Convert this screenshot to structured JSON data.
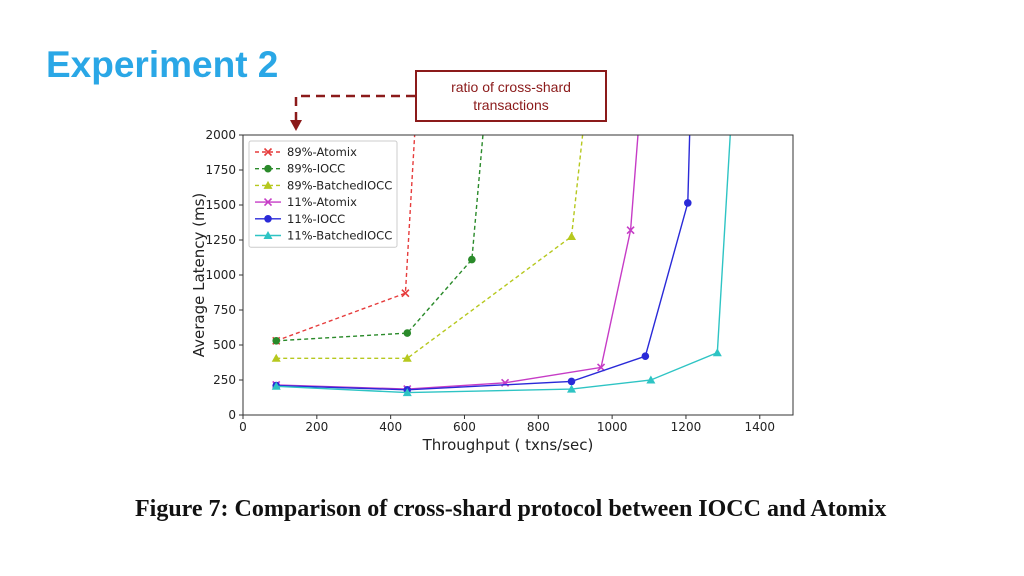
{
  "slide": {
    "title": "Experiment 2",
    "callout": "ratio of cross-shard transactions",
    "caption": "Figure 7: Comparison of cross-shard protocol between IOCC and Atomix"
  },
  "colors": {
    "title": "#2aa7e6",
    "callout": "#8b1a1a"
  },
  "chart_data": {
    "type": "line",
    "xlabel": "Throughput ( txns/sec)",
    "ylabel": "Average Latency (ms)",
    "xlim": [
      0,
      1490
    ],
    "ylim": [
      0,
      2000
    ],
    "xticks": [
      0,
      200,
      400,
      600,
      800,
      1000,
      1200,
      1400
    ],
    "yticks": [
      0,
      250,
      500,
      750,
      1000,
      1250,
      1500,
      1750,
      2000
    ],
    "legend_position": "top-left",
    "grid": false,
    "series": [
      {
        "name": "89%-Atomix",
        "color": "#e63c3c",
        "dash": true,
        "marker": "x",
        "x": [
          90,
          440,
          465
        ],
        "y": [
          530,
          870,
          2000
        ]
      },
      {
        "name": "89%-IOCC",
        "color": "#2a8a2a",
        "dash": true,
        "marker": "circle",
        "x": [
          90,
          445,
          620,
          650
        ],
        "y": [
          530,
          585,
          1110,
          2000
        ]
      },
      {
        "name": "89%-BatchedIOCC",
        "color": "#b6c81e",
        "dash": true,
        "marker": "triangle",
        "x": [
          90,
          445,
          890,
          920
        ],
        "y": [
          405,
          405,
          1275,
          2000
        ]
      },
      {
        "name": "11%-Atomix",
        "color": "#c63cc6",
        "dash": false,
        "marker": "x",
        "x": [
          90,
          445,
          710,
          970,
          1050,
          1070
        ],
        "y": [
          215,
          185,
          230,
          340,
          1320,
          2000
        ]
      },
      {
        "name": "11%-IOCC",
        "color": "#2a2ad8",
        "dash": false,
        "marker": "circle",
        "x": [
          90,
          445,
          890,
          1090,
          1205,
          1210
        ],
        "y": [
          210,
          180,
          240,
          420,
          1515,
          2000
        ]
      },
      {
        "name": "11%-BatchedIOCC",
        "color": "#2ec4c4",
        "dash": false,
        "marker": "triangle",
        "x": [
          90,
          445,
          890,
          1105,
          1285,
          1320
        ],
        "y": [
          205,
          160,
          185,
          250,
          445,
          2000
        ]
      }
    ]
  }
}
